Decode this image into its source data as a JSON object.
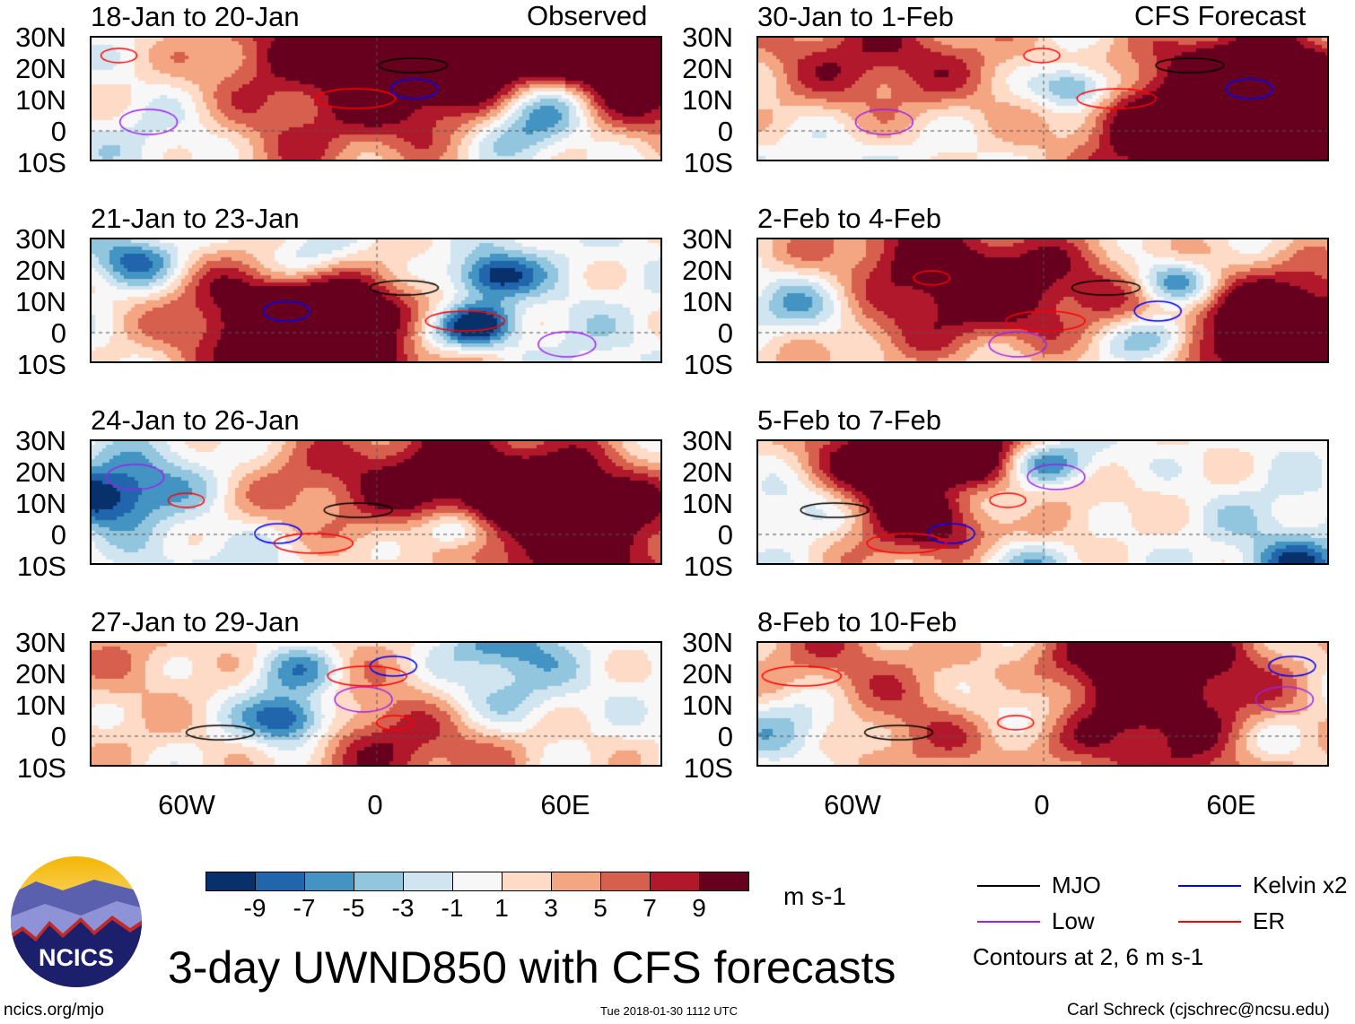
{
  "left_header": "Observed",
  "right_header": "CFS Forecast",
  "panels_left": [
    "18-Jan to 20-Jan",
    "21-Jan to 23-Jan",
    "24-Jan to 26-Jan",
    "27-Jan to 29-Jan"
  ],
  "panels_right": [
    "30-Jan to 1-Feb",
    "2-Feb to 4-Feb",
    "5-Feb to 7-Feb",
    "8-Feb to 10-Feb"
  ],
  "lat_labels": [
    "30N",
    "20N",
    "10N",
    "0",
    "10S"
  ],
  "lon_labels": [
    "60W",
    "0",
    "60E"
  ],
  "colorbar": {
    "colors": [
      "#08306b",
      "#2166ac",
      "#4393c3",
      "#92c5de",
      "#d1e5f0",
      "#f7f7f7",
      "#fddbc7",
      "#f4a582",
      "#d6604d",
      "#b2182b",
      "#67001f"
    ],
    "ticks": [
      "-9",
      "-7",
      "-5",
      "-3",
      "-1",
      "1",
      "3",
      "5",
      "7",
      "9"
    ],
    "units": "m s-1"
  },
  "legend": {
    "items": [
      {
        "label": "MJO",
        "color": "#000000"
      },
      {
        "label": "Kelvin x2",
        "color": "#0000ff"
      },
      {
        "label": "Low",
        "color": "#a020f0"
      },
      {
        "label": "ER",
        "color": "#ff0000"
      }
    ],
    "note": "Contours at 2, 6 m s-1"
  },
  "title": "3-day UWND850 with CFS forecasts",
  "logo_text": "NCICS",
  "footer": {
    "left": "ncics.org/mjo",
    "center": "Tue 2018-01-30 1112 UTC",
    "right": "Carl Schreck (cjschrec@ncsu.edu)"
  }
}
